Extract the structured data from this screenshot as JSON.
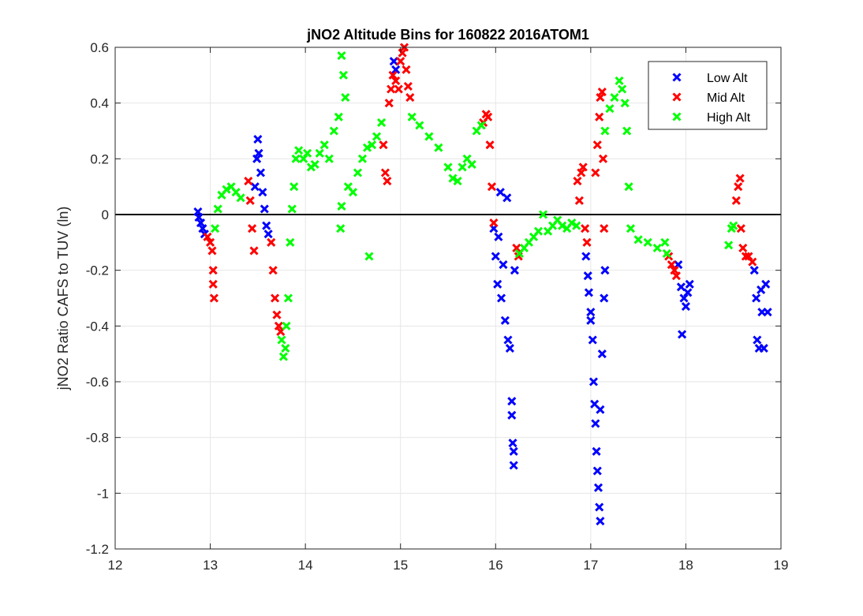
{
  "chart_data": {
    "type": "scatter",
    "title": "jNO2 Altitude Bins for 160822 2016ATOM1",
    "xlabel": "",
    "ylabel": "jNO2 Ratio CAFS to TUV (ln)",
    "xlim": [
      12,
      19
    ],
    "ylim": [
      -1.2,
      0.6
    ],
    "xticks": [
      "12",
      "13",
      "14",
      "15",
      "16",
      "17",
      "18",
      "19"
    ],
    "yticks": [
      "0.6",
      "0.4",
      "0.2",
      "0",
      "-0.2",
      "-0.4",
      "-0.6",
      "-0.8",
      "-1",
      "-1.2"
    ],
    "grid": true,
    "reference_line": 0,
    "legend_position": "top-right",
    "marker": "x",
    "series": [
      {
        "name": "Low Alt",
        "color": "#0000ff",
        "points": [
          [
            12.87,
            0.01
          ],
          [
            12.88,
            -0.01
          ],
          [
            12.9,
            -0.03
          ],
          [
            12.92,
            -0.05
          ],
          [
            12.94,
            -0.07
          ],
          [
            13.47,
            0.1
          ],
          [
            13.49,
            0.2
          ],
          [
            13.5,
            0.27
          ],
          [
            13.51,
            0.22
          ],
          [
            13.53,
            0.15
          ],
          [
            13.55,
            0.08
          ],
          [
            13.57,
            0.02
          ],
          [
            13.59,
            -0.04
          ],
          [
            13.61,
            -0.07
          ],
          [
            14.93,
            0.55
          ],
          [
            14.95,
            0.52
          ],
          [
            15.98,
            -0.05
          ],
          [
            16.0,
            -0.15
          ],
          [
            16.02,
            -0.25
          ],
          [
            16.03,
            -0.08
          ],
          [
            16.05,
            0.08
          ],
          [
            16.06,
            -0.3
          ],
          [
            16.08,
            -0.18
          ],
          [
            16.1,
            -0.38
          ],
          [
            16.12,
            0.06
          ],
          [
            16.13,
            -0.45
          ],
          [
            16.15,
            -0.48
          ],
          [
            16.17,
            -0.67
          ],
          [
            16.17,
            -0.72
          ],
          [
            16.18,
            -0.82
          ],
          [
            16.19,
            -0.85
          ],
          [
            16.19,
            -0.9
          ],
          [
            16.2,
            -0.2
          ],
          [
            16.95,
            -0.15
          ],
          [
            16.97,
            -0.22
          ],
          [
            16.98,
            -0.28
          ],
          [
            17.0,
            -0.35
          ],
          [
            17.0,
            -0.38
          ],
          [
            17.02,
            -0.45
          ],
          [
            17.03,
            -0.6
          ],
          [
            17.04,
            -0.68
          ],
          [
            17.05,
            -0.75
          ],
          [
            17.06,
            -0.85
          ],
          [
            17.07,
            -0.92
          ],
          [
            17.08,
            -0.98
          ],
          [
            17.09,
            -1.05
          ],
          [
            17.1,
            -1.1
          ],
          [
            17.1,
            -0.7
          ],
          [
            17.12,
            -0.5
          ],
          [
            17.14,
            -0.3
          ],
          [
            17.15,
            -0.2
          ],
          [
            17.92,
            -0.18
          ],
          [
            17.95,
            -0.26
          ],
          [
            17.96,
            -0.43
          ],
          [
            17.98,
            -0.3
          ],
          [
            18.0,
            -0.33
          ],
          [
            18.02,
            -0.28
          ],
          [
            18.04,
            -0.25
          ],
          [
            18.72,
            -0.2
          ],
          [
            18.74,
            -0.3
          ],
          [
            18.75,
            -0.45
          ],
          [
            18.77,
            -0.48
          ],
          [
            18.79,
            -0.27
          ],
          [
            18.8,
            -0.35
          ],
          [
            18.82,
            -0.48
          ],
          [
            18.84,
            -0.25
          ],
          [
            18.86,
            -0.35
          ]
        ]
      },
      {
        "name": "Mid Alt",
        "color": "#ff0000",
        "points": [
          [
            12.97,
            -0.08
          ],
          [
            13.0,
            -0.1
          ],
          [
            13.02,
            -0.13
          ],
          [
            13.03,
            -0.2
          ],
          [
            13.03,
            -0.25
          ],
          [
            13.04,
            -0.3
          ],
          [
            13.4,
            0.12
          ],
          [
            13.42,
            0.05
          ],
          [
            13.44,
            -0.05
          ],
          [
            13.46,
            -0.13
          ],
          [
            13.64,
            -0.1
          ],
          [
            13.66,
            -0.2
          ],
          [
            13.68,
            -0.3
          ],
          [
            13.7,
            -0.36
          ],
          [
            13.72,
            -0.4
          ],
          [
            13.74,
            -0.42
          ],
          [
            14.82,
            0.25
          ],
          [
            14.84,
            0.15
          ],
          [
            14.86,
            0.12
          ],
          [
            14.88,
            0.4
          ],
          [
            14.9,
            0.45
          ],
          [
            14.92,
            0.5
          ],
          [
            14.95,
            0.48
          ],
          [
            14.98,
            0.45
          ],
          [
            15.0,
            0.55
          ],
          [
            15.02,
            0.58
          ],
          [
            15.04,
            0.6
          ],
          [
            15.06,
            0.52
          ],
          [
            15.08,
            0.46
          ],
          [
            15.1,
            0.42
          ],
          [
            15.87,
            0.33
          ],
          [
            15.9,
            0.36
          ],
          [
            15.92,
            0.35
          ],
          [
            15.94,
            0.25
          ],
          [
            15.96,
            0.1
          ],
          [
            15.98,
            -0.03
          ],
          [
            16.22,
            -0.12
          ],
          [
            16.24,
            -0.15
          ],
          [
            16.86,
            0.12
          ],
          [
            16.88,
            0.05
          ],
          [
            16.9,
            0.15
          ],
          [
            16.92,
            0.17
          ],
          [
            16.94,
            -0.05
          ],
          [
            16.96,
            -0.1
          ],
          [
            17.05,
            0.15
          ],
          [
            17.07,
            0.25
          ],
          [
            17.09,
            0.35
          ],
          [
            17.1,
            0.42
          ],
          [
            17.12,
            0.44
          ],
          [
            17.13,
            0.2
          ],
          [
            17.14,
            -0.05
          ],
          [
            17.82,
            -0.15
          ],
          [
            17.85,
            -0.18
          ],
          [
            17.88,
            -0.2
          ],
          [
            17.9,
            -0.22
          ],
          [
            18.53,
            0.05
          ],
          [
            18.55,
            0.1
          ],
          [
            18.57,
            0.13
          ],
          [
            18.58,
            -0.05
          ],
          [
            18.6,
            -0.12
          ],
          [
            18.63,
            -0.15
          ],
          [
            18.66,
            -0.15
          ],
          [
            18.7,
            -0.17
          ]
        ]
      },
      {
        "name": "High Alt",
        "color": "#00ff00",
        "points": [
          [
            13.05,
            -0.05
          ],
          [
            13.08,
            0.02
          ],
          [
            13.12,
            0.07
          ],
          [
            13.17,
            0.09
          ],
          [
            13.22,
            0.1
          ],
          [
            13.27,
            0.08
          ],
          [
            13.32,
            0.06
          ],
          [
            13.75,
            -0.45
          ],
          [
            13.77,
            -0.51
          ],
          [
            13.79,
            -0.48
          ],
          [
            13.8,
            -0.4
          ],
          [
            13.82,
            -0.3
          ],
          [
            13.84,
            -0.1
          ],
          [
            13.86,
            0.02
          ],
          [
            13.88,
            0.1
          ],
          [
            13.9,
            0.2
          ],
          [
            13.93,
            0.23
          ],
          [
            13.98,
            0.2
          ],
          [
            14.02,
            0.22
          ],
          [
            14.06,
            0.17
          ],
          [
            14.1,
            0.18
          ],
          [
            14.15,
            0.22
          ],
          [
            14.2,
            0.25
          ],
          [
            14.25,
            0.2
          ],
          [
            14.3,
            0.3
          ],
          [
            14.35,
            0.35
          ],
          [
            14.38,
            0.57
          ],
          [
            14.4,
            0.5
          ],
          [
            14.42,
            0.42
          ],
          [
            14.37,
            -0.05
          ],
          [
            14.38,
            0.03
          ],
          [
            14.45,
            0.1
          ],
          [
            14.5,
            0.08
          ],
          [
            14.55,
            0.15
          ],
          [
            14.6,
            0.2
          ],
          [
            14.65,
            0.24
          ],
          [
            14.67,
            -0.15
          ],
          [
            14.7,
            0.25
          ],
          [
            14.75,
            0.28
          ],
          [
            14.8,
            0.33
          ],
          [
            15.12,
            0.35
          ],
          [
            15.2,
            0.32
          ],
          [
            15.3,
            0.28
          ],
          [
            15.4,
            0.24
          ],
          [
            15.5,
            0.17
          ],
          [
            15.55,
            0.13
          ],
          [
            15.6,
            0.12
          ],
          [
            15.65,
            0.17
          ],
          [
            15.7,
            0.2
          ],
          [
            15.75,
            0.18
          ],
          [
            15.8,
            0.3
          ],
          [
            15.85,
            0.32
          ],
          [
            16.25,
            -0.14
          ],
          [
            16.3,
            -0.12
          ],
          [
            16.35,
            -0.1
          ],
          [
            16.4,
            -0.08
          ],
          [
            16.45,
            -0.06
          ],
          [
            16.5,
            0.0
          ],
          [
            16.55,
            -0.06
          ],
          [
            16.6,
            -0.04
          ],
          [
            16.65,
            -0.02
          ],
          [
            16.7,
            -0.04
          ],
          [
            16.75,
            -0.05
          ],
          [
            16.8,
            -0.03
          ],
          [
            16.85,
            -0.04
          ],
          [
            17.15,
            0.3
          ],
          [
            17.2,
            0.38
          ],
          [
            17.25,
            0.42
          ],
          [
            17.3,
            0.48
          ],
          [
            17.33,
            0.45
          ],
          [
            17.36,
            0.4
          ],
          [
            17.38,
            0.3
          ],
          [
            17.4,
            0.1
          ],
          [
            17.42,
            -0.05
          ],
          [
            17.5,
            -0.09
          ],
          [
            17.6,
            -0.1
          ],
          [
            17.7,
            -0.12
          ],
          [
            17.78,
            -0.1
          ],
          [
            17.8,
            -0.14
          ],
          [
            18.45,
            -0.11
          ],
          [
            18.48,
            -0.05
          ],
          [
            18.5,
            -0.04
          ]
        ]
      }
    ]
  }
}
